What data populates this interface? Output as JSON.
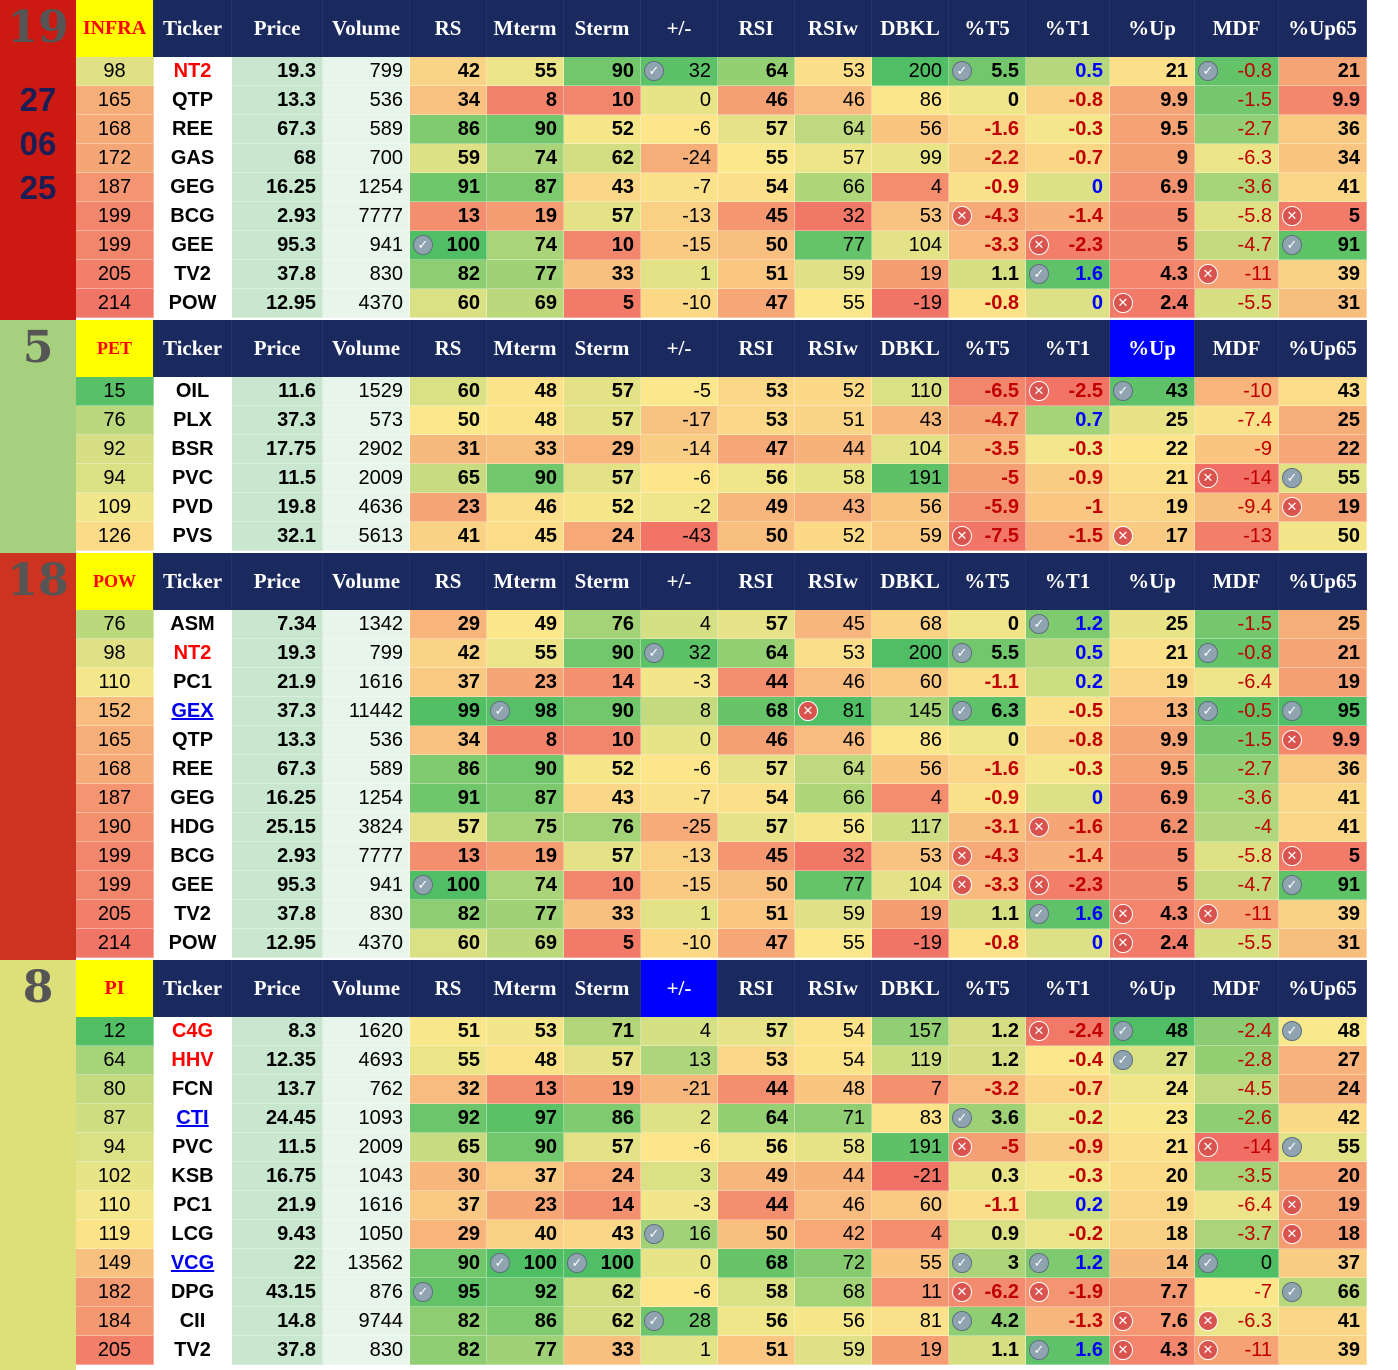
{
  "colors": {
    "header_bg": "#1b2a5e",
    "header_text": "#ffffff",
    "sector_bg": "#ffff00",
    "sector_text": "#ff0000",
    "highlight_header": "#0000ff"
  },
  "icons": {
    "ok": "check-circle-icon",
    "x": "cross-circle-icon"
  },
  "columns": [
    "Ticker",
    "Price",
    "Volume",
    "RS",
    "Mterm",
    "Sterm",
    "+/-",
    "RSI",
    "RSIw",
    "DBKL",
    "%T5",
    "%T1",
    "%Up",
    "MDF",
    "%Up65"
  ],
  "sections": [
    {
      "rank": "19",
      "date": [
        "27",
        "06",
        "25"
      ],
      "sector": "INFRA",
      "side_color": "#cc1a12",
      "highlight_col": null,
      "rows": [
        {
          "rank": "98",
          "ticker": "NT2",
          "tstyle": "red",
          "vals": [
            "19.3",
            "799",
            "42",
            "55",
            "90",
            "32",
            "64",
            "53",
            "200",
            "5.5",
            "0.5",
            "21",
            "-0.8",
            "21"
          ],
          "icons": {
            "5": "ok",
            "9": "ok",
            "12": "ok"
          }
        },
        {
          "rank": "165",
          "ticker": "QTP",
          "tstyle": "",
          "vals": [
            "13.3",
            "536",
            "34",
            "8",
            "10",
            "0",
            "46",
            "46",
            "86",
            "0",
            "-0.8",
            "9.9",
            "-1.5",
            "9.9"
          ],
          "icons": {}
        },
        {
          "rank": "168",
          "ticker": "REE",
          "tstyle": "",
          "vals": [
            "67.3",
            "589",
            "86",
            "90",
            "52",
            "-6",
            "57",
            "64",
            "56",
            "-1.6",
            "-0.3",
            "9.5",
            "-2.7",
            "36"
          ],
          "icons": {}
        },
        {
          "rank": "172",
          "ticker": "GAS",
          "tstyle": "",
          "vals": [
            "68",
            "700",
            "59",
            "74",
            "62",
            "-24",
            "55",
            "57",
            "99",
            "-2.2",
            "-0.7",
            "9",
            "-6.3",
            "34"
          ],
          "icons": {}
        },
        {
          "rank": "187",
          "ticker": "GEG",
          "tstyle": "",
          "vals": [
            "16.25",
            "1254",
            "91",
            "87",
            "43",
            "-7",
            "54",
            "66",
            "4",
            "-0.9",
            "0",
            "6.9",
            "-3.6",
            "41"
          ],
          "icons": {}
        },
        {
          "rank": "199",
          "ticker": "BCG",
          "tstyle": "",
          "vals": [
            "2.93",
            "7777",
            "13",
            "19",
            "57",
            "-13",
            "45",
            "32",
            "53",
            "-4.3",
            "-1.4",
            "5",
            "-5.8",
            "5"
          ],
          "icons": {
            "9": "x",
            "13": "x"
          }
        },
        {
          "rank": "199",
          "ticker": "GEE",
          "tstyle": "",
          "vals": [
            "95.3",
            "941",
            "100",
            "74",
            "10",
            "-15",
            "50",
            "77",
            "104",
            "-3.3",
            "-2.3",
            "5",
            "-4.7",
            "91"
          ],
          "icons": {
            "2": "ok",
            "10": "x",
            "13": "ok"
          }
        },
        {
          "rank": "205",
          "ticker": "TV2",
          "tstyle": "",
          "vals": [
            "37.8",
            "830",
            "82",
            "77",
            "33",
            "1",
            "51",
            "59",
            "19",
            "1.1",
            "1.6",
            "4.3",
            "-11",
            "39"
          ],
          "icons": {
            "10": "ok",
            "12": "x"
          }
        },
        {
          "rank": "214",
          "ticker": "POW",
          "tstyle": "",
          "vals": [
            "12.95",
            "4370",
            "60",
            "69",
            "5",
            "-10",
            "47",
            "55",
            "-19",
            "-0.8",
            "0",
            "2.4",
            "-5.5",
            "31"
          ],
          "icons": {
            "11": "x"
          }
        }
      ]
    },
    {
      "rank": "5",
      "date": [],
      "sector": "PET",
      "side_color": "#a6d07e",
      "highlight_col": 12,
      "rows": [
        {
          "rank": "15",
          "ticker": "OIL",
          "tstyle": "",
          "vals": [
            "11.6",
            "1529",
            "60",
            "48",
            "57",
            "-5",
            "53",
            "52",
            "110",
            "-6.5",
            "-2.5",
            "43",
            "-10",
            "43"
          ],
          "icons": {
            "10": "x",
            "11": "ok"
          }
        },
        {
          "rank": "76",
          "ticker": "PLX",
          "tstyle": "",
          "vals": [
            "37.3",
            "573",
            "50",
            "48",
            "57",
            "-17",
            "53",
            "51",
            "43",
            "-4.7",
            "0.7",
            "25",
            "-7.4",
            "25"
          ],
          "icons": {}
        },
        {
          "rank": "92",
          "ticker": "BSR",
          "tstyle": "",
          "vals": [
            "17.75",
            "2902",
            "31",
            "33",
            "29",
            "-14",
            "47",
            "44",
            "104",
            "-3.5",
            "-0.3",
            "22",
            "-9",
            "22"
          ],
          "icons": {}
        },
        {
          "rank": "94",
          "ticker": "PVC",
          "tstyle": "",
          "vals": [
            "11.5",
            "2009",
            "65",
            "90",
            "57",
            "-6",
            "56",
            "58",
            "191",
            "-5",
            "-0.9",
            "21",
            "-14",
            "55"
          ],
          "icons": {
            "12": "x",
            "13": "ok"
          }
        },
        {
          "rank": "109",
          "ticker": "PVD",
          "tstyle": "",
          "vals": [
            "19.8",
            "4636",
            "23",
            "46",
            "52",
            "-2",
            "49",
            "43",
            "56",
            "-5.9",
            "-1",
            "19",
            "-9.4",
            "19"
          ],
          "icons": {
            "13": "x"
          }
        },
        {
          "rank": "126",
          "ticker": "PVS",
          "tstyle": "",
          "vals": [
            "32.1",
            "5613",
            "41",
            "45",
            "24",
            "-43",
            "50",
            "52",
            "59",
            "-7.5",
            "-1.5",
            "17",
            "-13",
            "50"
          ],
          "icons": {
            "9": "x",
            "11": "x"
          }
        }
      ]
    },
    {
      "rank": "18",
      "date": [],
      "sector": "POW",
      "side_color": "#cc3320",
      "highlight_col": null,
      "rows": [
        {
          "rank": "76",
          "ticker": "ASM",
          "tstyle": "",
          "vals": [
            "7.34",
            "1342",
            "29",
            "49",
            "76",
            "4",
            "57",
            "45",
            "68",
            "0",
            "1.2",
            "25",
            "-1.5",
            "25"
          ],
          "icons": {
            "10": "ok"
          }
        },
        {
          "rank": "98",
          "ticker": "NT2",
          "tstyle": "red",
          "vals": [
            "19.3",
            "799",
            "42",
            "55",
            "90",
            "32",
            "64",
            "53",
            "200",
            "5.5",
            "0.5",
            "21",
            "-0.8",
            "21"
          ],
          "icons": {
            "5": "ok",
            "9": "ok",
            "12": "ok"
          }
        },
        {
          "rank": "110",
          "ticker": "PC1",
          "tstyle": "",
          "vals": [
            "21.9",
            "1616",
            "37",
            "23",
            "14",
            "-3",
            "44",
            "46",
            "60",
            "-1.1",
            "0.2",
            "19",
            "-6.4",
            "19"
          ],
          "icons": {}
        },
        {
          "rank": "152",
          "ticker": "GEX",
          "tstyle": "link",
          "vals": [
            "37.3",
            "11442",
            "99",
            "98",
            "90",
            "8",
            "68",
            "81",
            "145",
            "6.3",
            "-0.5",
            "13",
            "-0.5",
            "95"
          ],
          "icons": {
            "3": "ok",
            "7": "x",
            "9": "ok",
            "12": "ok",
            "13": "ok"
          }
        },
        {
          "rank": "165",
          "ticker": "QTP",
          "tstyle": "",
          "vals": [
            "13.3",
            "536",
            "34",
            "8",
            "10",
            "0",
            "46",
            "46",
            "86",
            "0",
            "-0.8",
            "9.9",
            "-1.5",
            "9.9"
          ],
          "icons": {
            "13": "x"
          }
        },
        {
          "rank": "168",
          "ticker": "REE",
          "tstyle": "",
          "vals": [
            "67.3",
            "589",
            "86",
            "90",
            "52",
            "-6",
            "57",
            "64",
            "56",
            "-1.6",
            "-0.3",
            "9.5",
            "-2.7",
            "36"
          ],
          "icons": {}
        },
        {
          "rank": "187",
          "ticker": "GEG",
          "tstyle": "",
          "vals": [
            "16.25",
            "1254",
            "91",
            "87",
            "43",
            "-7",
            "54",
            "66",
            "4",
            "-0.9",
            "0",
            "6.9",
            "-3.6",
            "41"
          ],
          "icons": {}
        },
        {
          "rank": "190",
          "ticker": "HDG",
          "tstyle": "",
          "vals": [
            "25.15",
            "3824",
            "57",
            "75",
            "76",
            "-25",
            "57",
            "56",
            "117",
            "-3.1",
            "-1.6",
            "6.2",
            "-4",
            "41"
          ],
          "icons": {
            "10": "x"
          }
        },
        {
          "rank": "199",
          "ticker": "BCG",
          "tstyle": "",
          "vals": [
            "2.93",
            "7777",
            "13",
            "19",
            "57",
            "-13",
            "45",
            "32",
            "53",
            "-4.3",
            "-1.4",
            "5",
            "-5.8",
            "5"
          ],
          "icons": {
            "9": "x",
            "13": "x"
          }
        },
        {
          "rank": "199",
          "ticker": "GEE",
          "tstyle": "",
          "vals": [
            "95.3",
            "941",
            "100",
            "74",
            "10",
            "-15",
            "50",
            "77",
            "104",
            "-3.3",
            "-2.3",
            "5",
            "-4.7",
            "91"
          ],
          "icons": {
            "2": "ok",
            "9": "x",
            "10": "x",
            "13": "ok"
          }
        },
        {
          "rank": "205",
          "ticker": "TV2",
          "tstyle": "",
          "vals": [
            "37.8",
            "830",
            "82",
            "77",
            "33",
            "1",
            "51",
            "59",
            "19",
            "1.1",
            "1.6",
            "4.3",
            "-11",
            "39"
          ],
          "icons": {
            "10": "ok",
            "11": "x",
            "12": "x"
          }
        },
        {
          "rank": "214",
          "ticker": "POW",
          "tstyle": "",
          "vals": [
            "12.95",
            "4370",
            "60",
            "69",
            "5",
            "-10",
            "47",
            "55",
            "-19",
            "-0.8",
            "0",
            "2.4",
            "-5.5",
            "31"
          ],
          "icons": {
            "11": "x"
          }
        }
      ]
    },
    {
      "rank": "8",
      "date": [],
      "sector": "PI",
      "side_color": "#dde07a",
      "highlight_col": 6,
      "rows": [
        {
          "rank": "12",
          "ticker": "C4G",
          "tstyle": "red",
          "vals": [
            "8.3",
            "1620",
            "51",
            "53",
            "71",
            "4",
            "57",
            "54",
            "157",
            "1.2",
            "-2.4",
            "48",
            "-2.4",
            "48"
          ],
          "icons": {
            "10": "x",
            "11": "ok",
            "13": "ok"
          }
        },
        {
          "rank": "64",
          "ticker": "HHV",
          "tstyle": "red",
          "vals": [
            "12.35",
            "4693",
            "55",
            "48",
            "57",
            "13",
            "53",
            "54",
            "119",
            "1.2",
            "-0.4",
            "27",
            "-2.8",
            "27"
          ],
          "icons": {
            "11": "ok"
          }
        },
        {
          "rank": "80",
          "ticker": "FCN",
          "tstyle": "",
          "vals": [
            "13.7",
            "762",
            "32",
            "13",
            "19",
            "-21",
            "44",
            "48",
            "7",
            "-3.2",
            "-0.7",
            "24",
            "-4.5",
            "24"
          ],
          "icons": {}
        },
        {
          "rank": "87",
          "ticker": "CTI",
          "tstyle": "link",
          "vals": [
            "24.45",
            "1093",
            "92",
            "97",
            "86",
            "2",
            "64",
            "71",
            "83",
            "3.6",
            "-0.2",
            "23",
            "-2.6",
            "42"
          ],
          "icons": {
            "9": "ok"
          }
        },
        {
          "rank": "94",
          "ticker": "PVC",
          "tstyle": "",
          "vals": [
            "11.5",
            "2009",
            "65",
            "90",
            "57",
            "-6",
            "56",
            "58",
            "191",
            "-5",
            "-0.9",
            "21",
            "-14",
            "55"
          ],
          "icons": {
            "9": "x",
            "12": "x",
            "13": "ok"
          }
        },
        {
          "rank": "102",
          "ticker": "KSB",
          "tstyle": "",
          "vals": [
            "16.75",
            "1043",
            "30",
            "37",
            "24",
            "3",
            "49",
            "44",
            "-21",
            "0.3",
            "-0.3",
            "20",
            "-3.5",
            "20"
          ],
          "icons": {}
        },
        {
          "rank": "110",
          "ticker": "PC1",
          "tstyle": "",
          "vals": [
            "21.9",
            "1616",
            "37",
            "23",
            "14",
            "-3",
            "44",
            "46",
            "60",
            "-1.1",
            "0.2",
            "19",
            "-6.4",
            "19"
          ],
          "icons": {
            "13": "x"
          }
        },
        {
          "rank": "119",
          "ticker": "LCG",
          "tstyle": "",
          "vals": [
            "9.43",
            "1050",
            "29",
            "40",
            "43",
            "16",
            "50",
            "42",
            "4",
            "0.9",
            "-0.2",
            "18",
            "-3.7",
            "18"
          ],
          "icons": {
            "5": "ok",
            "13": "x"
          }
        },
        {
          "rank": "149",
          "ticker": "VCG",
          "tstyle": "link",
          "vals": [
            "22",
            "13562",
            "90",
            "100",
            "100",
            "0",
            "68",
            "72",
            "55",
            "3",
            "1.2",
            "14",
            "0",
            "37"
          ],
          "icons": {
            "3": "ok",
            "4": "ok",
            "9": "ok",
            "10": "ok",
            "12": "ok"
          }
        },
        {
          "rank": "182",
          "ticker": "DPG",
          "tstyle": "",
          "vals": [
            "43.15",
            "876",
            "95",
            "92",
            "62",
            "-6",
            "58",
            "68",
            "11",
            "-6.2",
            "-1.9",
            "7.7",
            "-7",
            "66"
          ],
          "icons": {
            "2": "ok",
            "9": "x",
            "10": "x",
            "13": "ok"
          }
        },
        {
          "rank": "184",
          "ticker": "CII",
          "tstyle": "",
          "vals": [
            "14.8",
            "9744",
            "82",
            "86",
            "62",
            "28",
            "56",
            "56",
            "81",
            "4.2",
            "-1.3",
            "7.6",
            "-6.3",
            "41"
          ],
          "icons": {
            "5": "ok",
            "9": "ok",
            "11": "x",
            "12": "x"
          }
        },
        {
          "rank": "205",
          "ticker": "TV2",
          "tstyle": "",
          "vals": [
            "37.8",
            "830",
            "82",
            "77",
            "33",
            "1",
            "51",
            "59",
            "19",
            "1.1",
            "1.6",
            "4.3",
            "-11",
            "39"
          ],
          "icons": {
            "10": "ok",
            "11": "x",
            "12": "x"
          }
        }
      ]
    }
  ]
}
